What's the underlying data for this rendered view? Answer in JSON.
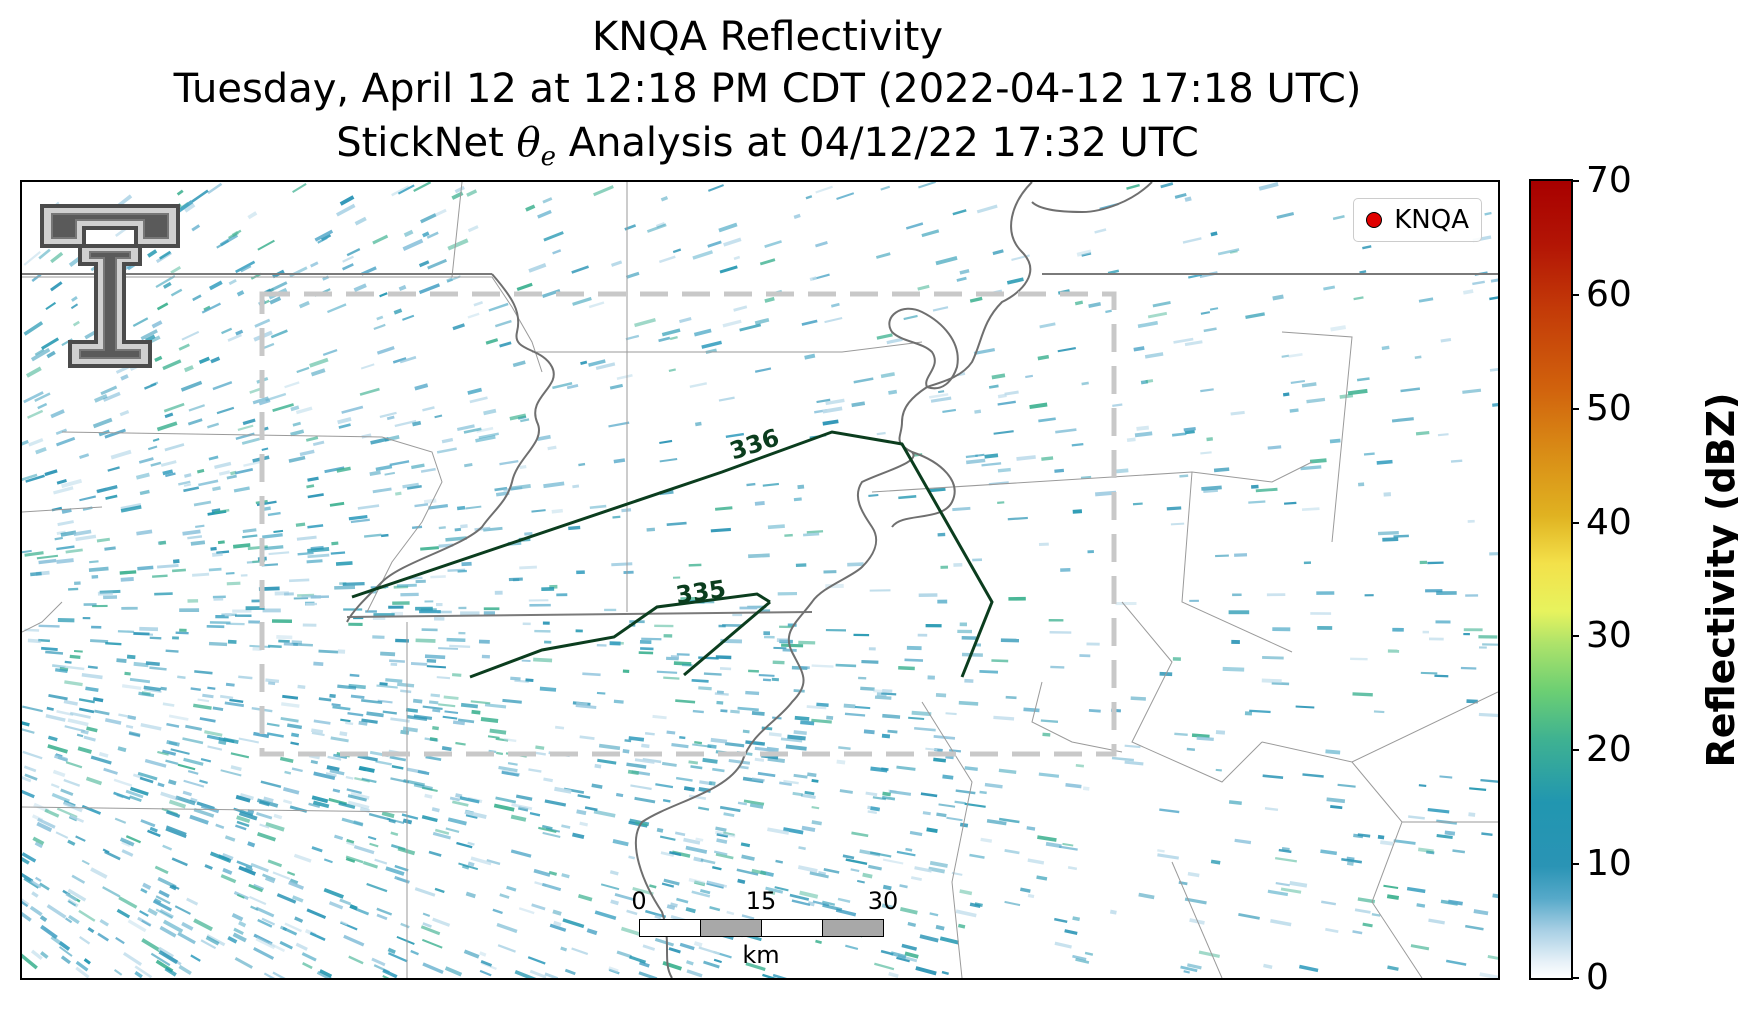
{
  "title": {
    "line1": "KNQA Reflectivity",
    "line2": "Tuesday, April 12 at 12:18 PM CDT (2022-04-12 17:18 UTC)",
    "line3_prefix": "StickNet ",
    "line3_symbol": "θ",
    "line3_subscript": "e",
    "line3_suffix": " Analysis at 04/12/22 17:32 UTC"
  },
  "legend": {
    "label": "KNQA",
    "marker_color": "#e00000"
  },
  "contours": [
    {
      "label": "336",
      "color": "#0b3d1e"
    },
    {
      "label": "335",
      "color": "#0b3d1e"
    }
  ],
  "scalebar": {
    "ticks": [
      "0",
      "15",
      "30"
    ],
    "unit": "km"
  },
  "colorbar": {
    "title": "Reflectivity (dBZ)",
    "ticks": [
      "0",
      "10",
      "20",
      "30",
      "40",
      "50",
      "60",
      "70"
    ],
    "range": [
      0,
      70
    ]
  },
  "logo": {
    "icon": "texas-tech-double-t-logo"
  },
  "colors": {
    "reflectivity_main": "#2a94b5",
    "reflectivity_light": "#a8cfe4",
    "analysis_box": "#c8c8c8",
    "boundaries": "#808080"
  }
}
